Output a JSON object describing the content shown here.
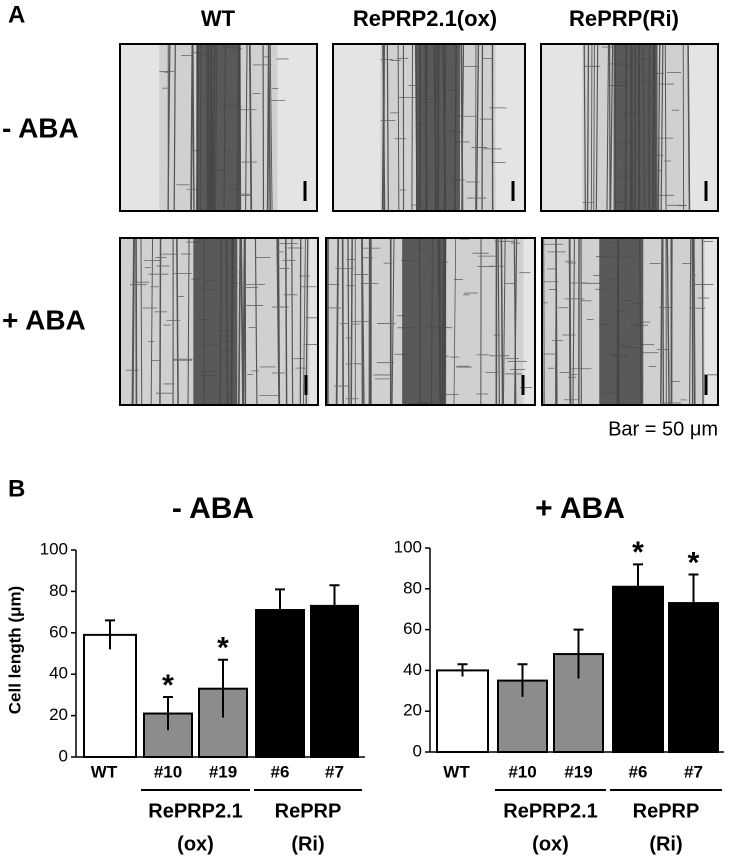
{
  "panel_a": {
    "label": "A",
    "columns": [
      "WT",
      "RePRP2.1(ox)",
      "RePRP(Ri)"
    ],
    "rows": [
      "- ABA",
      "+ ABA"
    ],
    "scale_note": "Bar = 50 μm"
  },
  "panel_b": {
    "label": "B"
  },
  "chart_data": [
    {
      "type": "bar",
      "title": "- ABA",
      "y_label": "Cell length (μm)",
      "categories": [
        "WT",
        "#10",
        "#19",
        "#6",
        "#7"
      ],
      "values": [
        59,
        21,
        33,
        71,
        73
      ],
      "errors": [
        7,
        8,
        14,
        10,
        10
      ],
      "colors": [
        "#ffffff",
        "#8c8c8c",
        "#8c8c8c",
        "#000000",
        "#000000"
      ],
      "markers": [
        null,
        "*",
        "*",
        null,
        null
      ],
      "group_labels": [
        [
          "RePRP2.1",
          "(ox)"
        ],
        [
          "RePRP",
          "(Ri)"
        ]
      ],
      "ylim": [
        0,
        100
      ],
      "yticks": [
        0,
        20,
        40,
        60,
        80,
        100
      ]
    },
    {
      "type": "bar",
      "title": "+ ABA",
      "categories": [
        "WT",
        "#10",
        "#19",
        "#6",
        "#7"
      ],
      "values": [
        40,
        35,
        48,
        81,
        73
      ],
      "errors": [
        3,
        8,
        12,
        11,
        14
      ],
      "colors": [
        "#ffffff",
        "#8c8c8c",
        "#8c8c8c",
        "#000000",
        "#000000"
      ],
      "markers": [
        null,
        null,
        null,
        "*",
        "*"
      ],
      "group_labels": [
        [
          "RePRP2.1",
          "(ox)"
        ],
        [
          "RePRP",
          "(Ri)"
        ]
      ],
      "ylim": [
        0,
        100
      ],
      "yticks": [
        0,
        20,
        40,
        60,
        80,
        100
      ]
    }
  ]
}
